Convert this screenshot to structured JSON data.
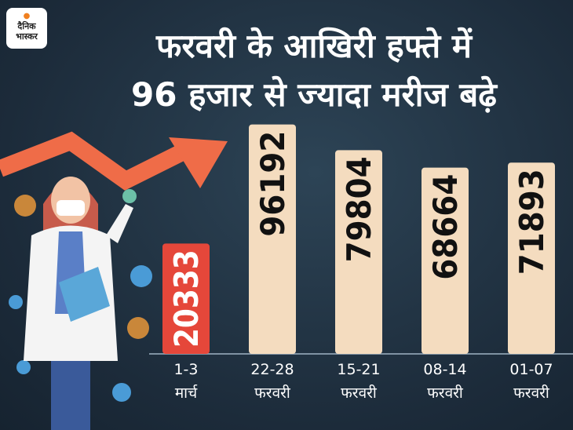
{
  "logo": {
    "line1": "दैनिक",
    "line2": "भास्कर"
  },
  "chart_data": {
    "type": "bar",
    "title": "फरवरी के आखिरी हफ्ते में\n96 हजार से ज्यादा मरीज बढ़े",
    "categories": [
      "1-3\nमार्च",
      "22-28\nफरवरी",
      "15-21\nफरवरी",
      "08-14\nफरवरी",
      "01-07\nफरवरी"
    ],
    "values": [
      20333,
      96192,
      79804,
      68664,
      71893
    ],
    "colors": [
      "#e5473a",
      "#f4dcbf",
      "#f4dcbf",
      "#f4dcbf",
      "#f4dcbf"
    ],
    "label_colors": [
      "#ffffff",
      "#111111",
      "#111111",
      "#111111",
      "#111111"
    ],
    "ylim": [
      -50000,
      100000
    ]
  }
}
